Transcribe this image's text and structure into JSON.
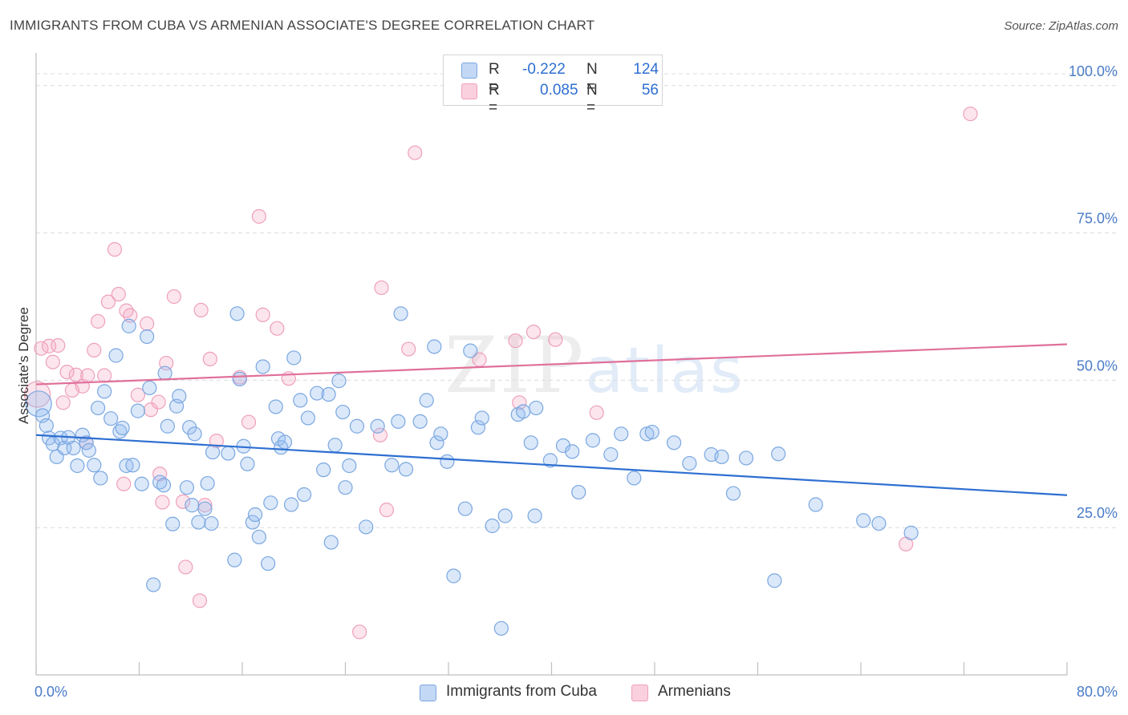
{
  "title": "IMMIGRANTS FROM CUBA VS ARMENIAN ASSOCIATE'S DEGREE CORRELATION CHART",
  "source": "Source: ZipAtlas.com",
  "watermark": {
    "zip": "ZIP",
    "atlas": "atlas"
  },
  "colors": {
    "blue": "#7ba7e0",
    "blue_line": "#2e6fd1",
    "pink": "#eea0bb",
    "pink_line": "#e0709a"
  },
  "legend": {
    "rows": [
      {
        "r_label": "R =",
        "r_value": "-0.222",
        "n_label": "N =",
        "n_value": "124"
      },
      {
        "r_label": "R =",
        "r_value": "0.085",
        "n_label": "N =",
        "n_value": "56"
      }
    ]
  },
  "bottom_legend": {
    "blue_label": "Immigrants from Cuba",
    "pink_label": "Armenians"
  },
  "chart_data": {
    "type": "scatter",
    "title": "IMMIGRANTS FROM CUBA VS ARMENIAN ASSOCIATE'S DEGREE CORRELATION CHART",
    "xlabel": "",
    "ylabel": "Associate's Degree",
    "xlim": [
      0,
      80
    ],
    "ylim": [
      0,
      105
    ],
    "x_tick_labels": [
      "0.0%",
      "80.0%"
    ],
    "y_ticks": [
      25,
      50,
      75,
      100
    ],
    "y_tick_labels": [
      "25.0%",
      "50.0%",
      "75.0%",
      "100.0%"
    ],
    "grid": true,
    "legend_position": "top-center",
    "series": [
      {
        "name": "Immigrants from Cuba",
        "color": "#7ba7e0",
        "trend": {
          "x": [
            0,
            80
          ],
          "y": [
            40.7,
            30.5
          ]
        },
        "points": [
          [
            0.2,
            46.0
          ],
          [
            0.5,
            44.0
          ],
          [
            0.8,
            42.3
          ],
          [
            1.0,
            40.2
          ],
          [
            1.3,
            39.2
          ],
          [
            1.6,
            37.0
          ],
          [
            1.9,
            40.2
          ],
          [
            2.2,
            38.5
          ],
          [
            2.5,
            40.3
          ],
          [
            2.9,
            38.5
          ],
          [
            3.2,
            35.5
          ],
          [
            3.6,
            40.7
          ],
          [
            3.9,
            39.4
          ],
          [
            4.1,
            38.1
          ],
          [
            4.5,
            35.6
          ],
          [
            4.8,
            45.3
          ],
          [
            5.0,
            33.4
          ],
          [
            5.3,
            48.1
          ],
          [
            5.8,
            43.5
          ],
          [
            6.2,
            54.2
          ],
          [
            6.5,
            41.3
          ],
          [
            6.7,
            41.9
          ],
          [
            7.0,
            35.5
          ],
          [
            7.5,
            35.6
          ],
          [
            7.2,
            59.2
          ],
          [
            7.9,
            44.8
          ],
          [
            8.2,
            32.4
          ],
          [
            8.6,
            57.4
          ],
          [
            8.8,
            48.7
          ],
          [
            9.1,
            15.3
          ],
          [
            9.6,
            32.7
          ],
          [
            9.9,
            32.2
          ],
          [
            10.0,
            51.2
          ],
          [
            10.2,
            42.2
          ],
          [
            10.6,
            25.6
          ],
          [
            10.9,
            45.6
          ],
          [
            11.1,
            47.3
          ],
          [
            11.7,
            31.8
          ],
          [
            11.9,
            42.0
          ],
          [
            12.1,
            28.8
          ],
          [
            12.3,
            40.9
          ],
          [
            12.6,
            25.9
          ],
          [
            13.1,
            28.2
          ],
          [
            13.3,
            32.5
          ],
          [
            13.6,
            25.7
          ],
          [
            13.7,
            37.8
          ],
          [
            14.9,
            37.6
          ],
          [
            15.4,
            19.5
          ],
          [
            15.6,
            61.3
          ],
          [
            15.8,
            50.2
          ],
          [
            16.1,
            38.8
          ],
          [
            16.4,
            35.8
          ],
          [
            16.8,
            25.9
          ],
          [
            17.0,
            27.2
          ],
          [
            17.3,
            23.4
          ],
          [
            17.6,
            52.3
          ],
          [
            18.0,
            18.9
          ],
          [
            18.2,
            29.2
          ],
          [
            18.6,
            45.5
          ],
          [
            18.8,
            40.1
          ],
          [
            19.0,
            38.6
          ],
          [
            19.3,
            39.5
          ],
          [
            19.8,
            28.9
          ],
          [
            20.0,
            53.8
          ],
          [
            20.5,
            46.6
          ],
          [
            20.8,
            30.6
          ],
          [
            21.1,
            43.6
          ],
          [
            21.8,
            47.8
          ],
          [
            22.3,
            34.8
          ],
          [
            22.7,
            47.6
          ],
          [
            22.9,
            22.5
          ],
          [
            23.2,
            39.0
          ],
          [
            23.5,
            49.9
          ],
          [
            23.8,
            44.6
          ],
          [
            24.0,
            31.8
          ],
          [
            24.3,
            35.5
          ],
          [
            24.9,
            42.2
          ],
          [
            25.6,
            25.1
          ],
          [
            26.5,
            42.2
          ],
          [
            27.6,
            35.6
          ],
          [
            28.1,
            43.0
          ],
          [
            28.3,
            61.3
          ],
          [
            28.7,
            34.9
          ],
          [
            29.8,
            43.0
          ],
          [
            30.3,
            46.6
          ],
          [
            30.9,
            55.7
          ],
          [
            31.1,
            39.4
          ],
          [
            31.4,
            40.9
          ],
          [
            31.9,
            36.2
          ],
          [
            32.4,
            16.8
          ],
          [
            33.3,
            28.2
          ],
          [
            33.7,
            55.0
          ],
          [
            34.3,
            42.0
          ],
          [
            34.6,
            43.6
          ],
          [
            35.4,
            25.3
          ],
          [
            36.1,
            7.9
          ],
          [
            36.4,
            27.0
          ],
          [
            37.4,
            44.2
          ],
          [
            37.8,
            44.7
          ],
          [
            38.4,
            39.4
          ],
          [
            38.7,
            27.0
          ],
          [
            38.8,
            45.3
          ],
          [
            39.9,
            36.4
          ],
          [
            40.9,
            38.9
          ],
          [
            41.6,
            37.9
          ],
          [
            42.1,
            31.0
          ],
          [
            43.2,
            39.8
          ],
          [
            44.6,
            37.4
          ],
          [
            45.4,
            40.9
          ],
          [
            46.4,
            33.4
          ],
          [
            47.4,
            40.9
          ],
          [
            47.8,
            41.2
          ],
          [
            49.5,
            39.4
          ],
          [
            50.7,
            35.9
          ],
          [
            52.4,
            37.4
          ],
          [
            53.2,
            37.0
          ],
          [
            54.1,
            30.8
          ],
          [
            55.1,
            36.8
          ],
          [
            57.3,
            16.0
          ],
          [
            57.6,
            37.5
          ],
          [
            60.5,
            28.9
          ],
          [
            64.2,
            26.2
          ],
          [
            65.4,
            25.7
          ],
          [
            67.9,
            24.1
          ]
        ]
      },
      {
        "name": "Armenians",
        "color": "#eea0bb",
        "trend": {
          "x": [
            0,
            80
          ],
          "y": [
            49.3,
            56.1
          ]
        },
        "points": [
          [
            0.1,
            47.6
          ],
          [
            0.4,
            55.4
          ],
          [
            1.0,
            55.8
          ],
          [
            1.3,
            53.1
          ],
          [
            1.7,
            55.9
          ],
          [
            2.1,
            46.2
          ],
          [
            2.4,
            51.4
          ],
          [
            2.8,
            48.3
          ],
          [
            3.1,
            50.9
          ],
          [
            3.6,
            49.0
          ],
          [
            3.9,
            39.4
          ],
          [
            4.0,
            50.8
          ],
          [
            4.5,
            55.1
          ],
          [
            4.8,
            60.0
          ],
          [
            5.3,
            50.8
          ],
          [
            5.6,
            63.3
          ],
          [
            6.1,
            72.2
          ],
          [
            6.4,
            64.6
          ],
          [
            6.8,
            32.4
          ],
          [
            7.0,
            61.8
          ],
          [
            7.3,
            61.0
          ],
          [
            7.9,
            47.5
          ],
          [
            8.6,
            59.6
          ],
          [
            8.9,
            45.0
          ],
          [
            9.5,
            46.3
          ],
          [
            9.6,
            34.1
          ],
          [
            9.8,
            29.3
          ],
          [
            10.1,
            52.9
          ],
          [
            10.7,
            64.2
          ],
          [
            11.4,
            29.4
          ],
          [
            11.6,
            18.3
          ],
          [
            12.7,
            12.6
          ],
          [
            12.8,
            61.9
          ],
          [
            13.1,
            28.8
          ],
          [
            13.5,
            53.6
          ],
          [
            14.0,
            39.7
          ],
          [
            15.8,
            50.5
          ],
          [
            16.5,
            42.9
          ],
          [
            17.3,
            77.8
          ],
          [
            17.6,
            61.1
          ],
          [
            18.7,
            58.8
          ],
          [
            19.6,
            50.3
          ],
          [
            25.1,
            7.3
          ],
          [
            26.7,
            40.7
          ],
          [
            26.8,
            65.7
          ],
          [
            27.2,
            28.0
          ],
          [
            28.9,
            55.3
          ],
          [
            29.4,
            88.6
          ],
          [
            34.4,
            53.5
          ],
          [
            37.2,
            56.7
          ],
          [
            37.5,
            46.2
          ],
          [
            38.6,
            58.2
          ],
          [
            40.3,
            56.9
          ],
          [
            43.5,
            44.5
          ],
          [
            67.5,
            22.2
          ],
          [
            72.5,
            95.2
          ]
        ]
      }
    ]
  }
}
